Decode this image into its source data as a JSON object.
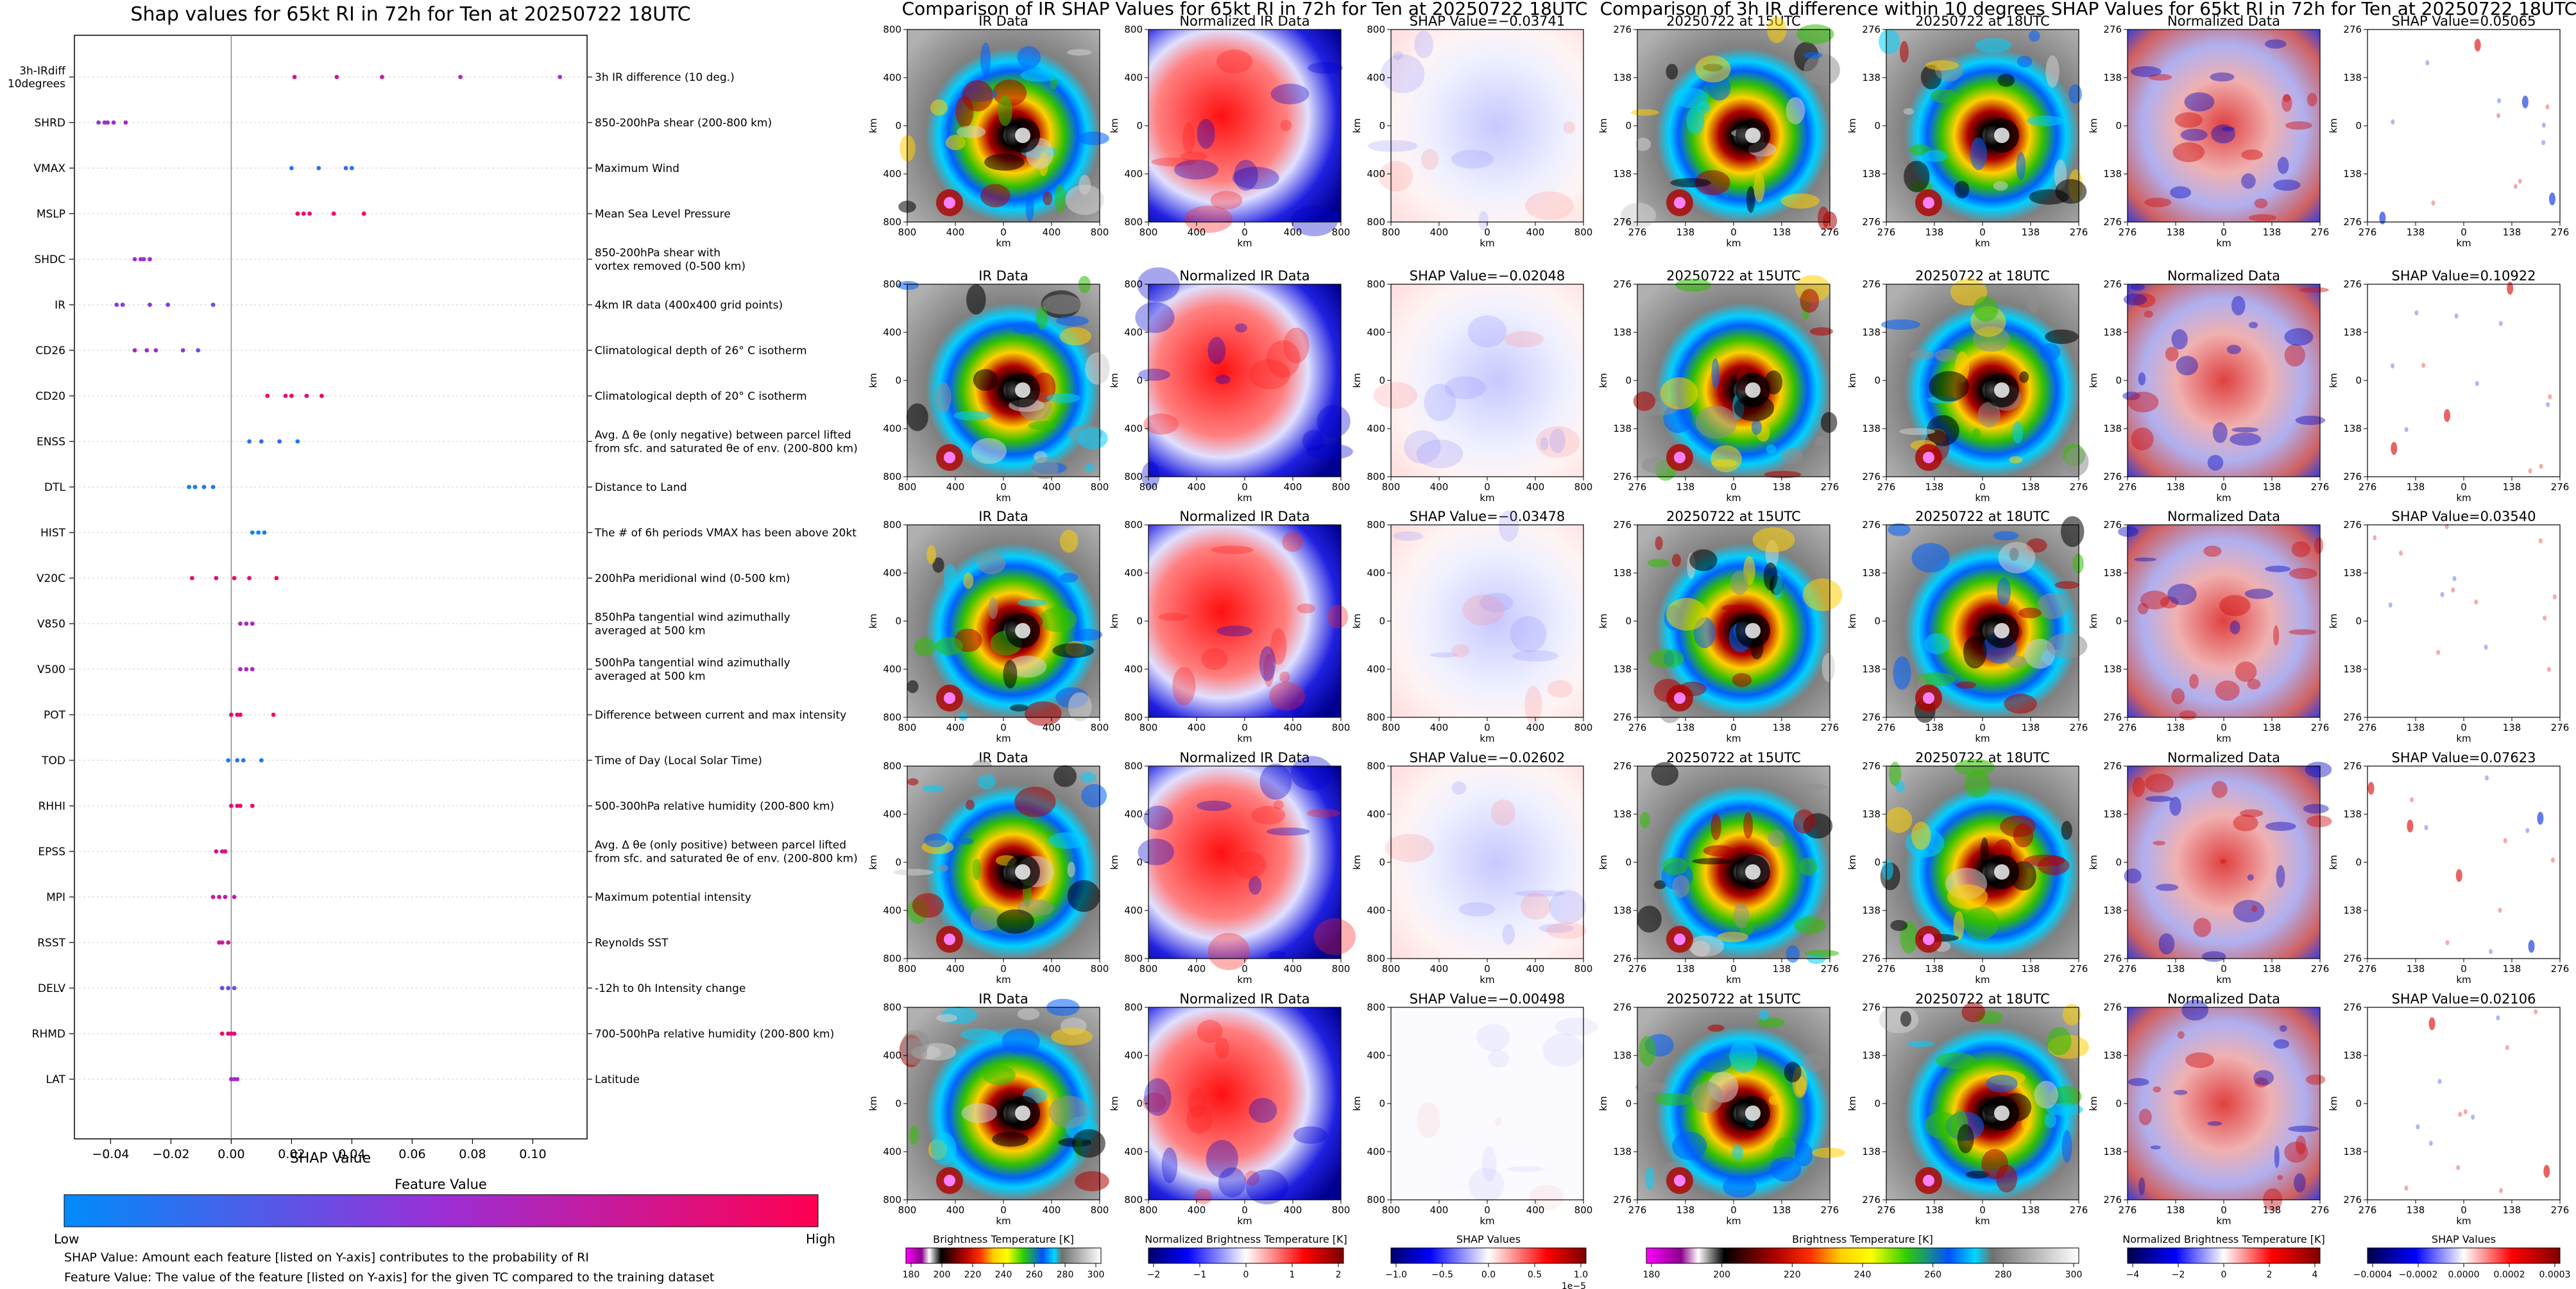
{
  "beeswarm": {
    "title": "Shap values for 65kt RI in 72h for Ten at 20250722 18UTC",
    "xlabel": "SHAP Value",
    "colorbar_title": "Feature Value",
    "colorbar_low": "Low",
    "colorbar_high": "High",
    "note1": "SHAP Value: Amount each feature [listed on Y-axis] contributes to the probability of RI",
    "note2": "Feature Value: The value of the feature [listed on Y-axis] for the given TC compared to the training dataset",
    "colors": {
      "low": "#008bfb",
      "mid": "#9b2fd6",
      "high": "#ff0052"
    }
  },
  "comparison_ir": {
    "title": "Comparison of IR SHAP Values for 65kt RI in 72h for Ten at 20250722 18UTC",
    "panel_titles": [
      "IR Data",
      "Normalized IR Data"
    ],
    "shap_prefix": "SHAP Value=",
    "axis_label": "km",
    "ticks": [
      "800",
      "400",
      "0",
      "400",
      "800"
    ],
    "colorbars": [
      {
        "label": "Brightness Temperature [K]",
        "ticks": [
          "180",
          "200",
          "220",
          "240",
          "260",
          "280",
          "300"
        ]
      },
      {
        "label": "Normalized Brightness Temperature [K]",
        "ticks": [
          "−2",
          "−1",
          "0",
          "1",
          "2"
        ]
      },
      {
        "label": "SHAP Values",
        "ticks": [
          "−1.0",
          "−0.5",
          "0.0",
          "0.5",
          "1.0"
        ],
        "exponent": "1e−5"
      }
    ]
  },
  "comparison_diff": {
    "title": "Comparison of 3h IR difference within 10 degrees SHAP Values for 65kt RI in 72h for Ten at 20250722 18UTC",
    "panel_titles": [
      "20250722 at 15UTC",
      "20250722 at 18UTC",
      "Normalized Data"
    ],
    "shap_prefix": "SHAP Value=",
    "axis_label": "km",
    "ticks": [
      "276",
      "138",
      "0",
      "138",
      "276"
    ],
    "colorbars": [
      {
        "label": "Brightness Temperature [K]",
        "ticks": [
          "180",
          "200",
          "220",
          "240",
          "260",
          "280",
          "300"
        ]
      },
      {
        "label": "Normalized Brightness Temperature [K]",
        "ticks": [
          "−4",
          "−2",
          "0",
          "2",
          "4"
        ]
      },
      {
        "label": "SHAP Values",
        "ticks": [
          "−0.0004",
          "−0.0002",
          "0.0000",
          "0.0002",
          "0.0003"
        ]
      }
    ]
  },
  "chart_data": [
    {
      "type": "scatter",
      "title": "Shap values for 65kt RI in 72h for Ten at 20250722 18UTC",
      "xlabel": "SHAP Value",
      "xlim": [
        -0.052,
        0.118
      ],
      "xticks": [
        "−0.04",
        "−0.02",
        "0.00",
        "0.02",
        "0.04",
        "0.06",
        "0.08",
        "0.10"
      ],
      "xtick_values": [
        -0.04,
        -0.02,
        0.0,
        0.02,
        0.04,
        0.06,
        0.08,
        0.1
      ],
      "features": [
        {
          "name": "3h-IRdiff\n10degrees",
          "desc": "3h IR difference (10 deg.)",
          "points": [
            [
              0.021,
              0.8
            ],
            [
              0.035,
              0.75
            ],
            [
              0.05,
              0.7
            ],
            [
              0.076,
              0.6
            ],
            [
              0.109,
              0.5
            ]
          ]
        },
        {
          "name": "SHRD",
          "desc": "850-200hPa shear (200-800 km)",
          "points": [
            [
              -0.044,
              0.4
            ],
            [
              -0.042,
              0.45
            ],
            [
              -0.041,
              0.55
            ],
            [
              -0.039,
              0.5
            ],
            [
              -0.035,
              0.6
            ]
          ]
        },
        {
          "name": "VMAX",
          "desc": "Maximum Wind",
          "points": [
            [
              0.02,
              0.1
            ],
            [
              0.029,
              0.15
            ],
            [
              0.038,
              0.2
            ],
            [
              0.04,
              0.1
            ]
          ]
        },
        {
          "name": "MSLP",
          "desc": "Mean Sea Level Pressure",
          "points": [
            [
              0.022,
              0.95
            ],
            [
              0.024,
              0.9
            ],
            [
              0.026,
              0.85
            ],
            [
              0.034,
              0.9
            ],
            [
              0.044,
              0.95
            ]
          ]
        },
        {
          "name": "SHDC",
          "desc": "850-200hPa shear with\nvortex removed (0-500 km)",
          "points": [
            [
              -0.032,
              0.5
            ],
            [
              -0.03,
              0.55
            ],
            [
              -0.029,
              0.5
            ],
            [
              -0.027,
              0.55
            ]
          ]
        },
        {
          "name": "IR",
          "desc": "4km IR data (400x400 grid points)",
          "points": [
            [
              -0.038,
              0.4
            ],
            [
              -0.036,
              0.45
            ],
            [
              -0.027,
              0.45
            ],
            [
              -0.021,
              0.4
            ],
            [
              -0.006,
              0.3
            ]
          ]
        },
        {
          "name": "CD26",
          "desc": "Climatological depth of 26° C isotherm",
          "points": [
            [
              -0.032,
              0.6
            ],
            [
              -0.028,
              0.55
            ],
            [
              -0.025,
              0.5
            ],
            [
              -0.016,
              0.4
            ],
            [
              -0.011,
              0.3
            ]
          ]
        },
        {
          "name": "CD20",
          "desc": "Climatological depth of 20° C isotherm",
          "points": [
            [
              0.012,
              0.9
            ],
            [
              0.018,
              0.85
            ],
            [
              0.02,
              0.9
            ],
            [
              0.025,
              0.85
            ],
            [
              0.03,
              0.9
            ]
          ]
        },
        {
          "name": "ENSS",
          "desc": "Avg. Δ θe (only negative) between parcel lifted\nfrom sfc. and saturated θe of env. (200-800 km)",
          "points": [
            [
              0.006,
              0.15
            ],
            [
              0.01,
              0.2
            ],
            [
              0.016,
              0.2
            ],
            [
              0.022,
              0.1
            ]
          ]
        },
        {
          "name": "DTL",
          "desc": "Distance to Land",
          "points": [
            [
              -0.014,
              0.05
            ],
            [
              -0.012,
              0.05
            ],
            [
              -0.009,
              0.1
            ],
            [
              -0.006,
              0.1
            ]
          ]
        },
        {
          "name": "HIST",
          "desc": "The # of 6h periods VMAX has been above 20kt",
          "points": [
            [
              0.007,
              0.05
            ],
            [
              0.009,
              0.05
            ],
            [
              0.011,
              0.1
            ]
          ]
        },
        {
          "name": "V20C",
          "desc": "200hPa meridional wind (0-500 km)",
          "points": [
            [
              -0.013,
              0.9
            ],
            [
              -0.005,
              0.85
            ],
            [
              0.001,
              0.9
            ],
            [
              0.006,
              0.85
            ],
            [
              0.015,
              0.9
            ]
          ]
        },
        {
          "name": "V850",
          "desc": "850hPa tangential wind azimuthally\naveraged at 500 km",
          "points": [
            [
              0.003,
              0.6
            ],
            [
              0.005,
              0.55
            ],
            [
              0.007,
              0.6
            ]
          ]
        },
        {
          "name": "V500",
          "desc": "500hPa tangential wind azimuthally\naveraged at 500 km",
          "points": [
            [
              0.003,
              0.6
            ],
            [
              0.005,
              0.55
            ],
            [
              0.007,
              0.6
            ]
          ]
        },
        {
          "name": "POT",
          "desc": "Difference between current and max intensity",
          "points": [
            [
              0.0,
              0.9
            ],
            [
              0.002,
              0.85
            ],
            [
              0.003,
              0.9
            ],
            [
              0.014,
              0.95
            ]
          ]
        },
        {
          "name": "TOD",
          "desc": "Time of Day (Local Solar Time)",
          "points": [
            [
              -0.001,
              0.1
            ],
            [
              0.002,
              0.15
            ],
            [
              0.004,
              0.1
            ],
            [
              0.01,
              0.1
            ]
          ]
        },
        {
          "name": "RHHI",
          "desc": "500-300hPa relative humidity (200-800 km)",
          "points": [
            [
              0.0,
              0.9
            ],
            [
              0.002,
              0.85
            ],
            [
              0.003,
              0.9
            ],
            [
              0.007,
              0.9
            ]
          ]
        },
        {
          "name": "EPSS",
          "desc": "Avg. Δ θe (only positive) between parcel lifted\nfrom sfc. and saturated θe of env. (200-800 km)",
          "points": [
            [
              -0.005,
              0.8
            ],
            [
              -0.003,
              0.75
            ],
            [
              -0.002,
              0.8
            ]
          ]
        },
        {
          "name": "MPI",
          "desc": "Maximum potential intensity",
          "points": [
            [
              -0.006,
              0.7
            ],
            [
              -0.004,
              0.75
            ],
            [
              -0.002,
              0.7
            ],
            [
              0.001,
              0.7
            ]
          ]
        },
        {
          "name": "RSST",
          "desc": "Reynolds SST",
          "points": [
            [
              -0.004,
              0.75
            ],
            [
              -0.003,
              0.7
            ],
            [
              -0.001,
              0.75
            ]
          ]
        },
        {
          "name": "DELV",
          "desc": "-12h to 0h Intensity change",
          "points": [
            [
              -0.003,
              0.3
            ],
            [
              -0.001,
              0.35
            ],
            [
              0.001,
              0.3
            ]
          ]
        },
        {
          "name": "RHMD",
          "desc": "700-500hPa relative humidity (200-800 km)",
          "points": [
            [
              -0.003,
              0.9
            ],
            [
              -0.001,
              0.85
            ],
            [
              0.0,
              0.9
            ],
            [
              0.001,
              0.9
            ]
          ]
        },
        {
          "name": "LAT",
          "desc": "Latitude",
          "points": [
            [
              0.0,
              0.55
            ],
            [
              0.001,
              0.5
            ],
            [
              0.002,
              0.55
            ]
          ]
        }
      ]
    },
    {
      "type": "heatmap",
      "title": "Comparison of IR SHAP Values for 65kt RI in 72h for Ten at 20250722 18UTC",
      "rows": 5,
      "shap_values": [
        "−0.03741",
        "−0.02048",
        "−0.03478",
        "−0.02602",
        "−0.00498"
      ]
    },
    {
      "type": "heatmap",
      "title": "Comparison of 3h IR difference within 10 degrees SHAP Values for 65kt RI in 72h for Ten at 20250722 18UTC",
      "rows": 5,
      "shap_values": [
        "0.05065",
        "0.10922",
        "0.03540",
        "0.07623",
        "0.02106"
      ]
    }
  ]
}
